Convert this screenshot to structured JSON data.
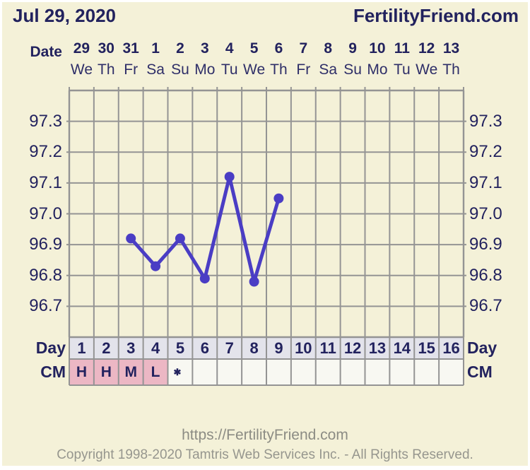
{
  "header": {
    "date_title": "Jul 29, 2020",
    "brand": "FertilityFriend.com"
  },
  "calendar": {
    "label": "Date",
    "dates": [
      "29",
      "30",
      "31",
      "1",
      "2",
      "3",
      "4",
      "5",
      "6",
      "7",
      "8",
      "9",
      "10",
      "11",
      "12",
      "13"
    ],
    "weekdays": [
      "We",
      "Th",
      "Fr",
      "Sa",
      "Su",
      "Mo",
      "Tu",
      "We",
      "Th",
      "Fr",
      "Sa",
      "Su",
      "Mo",
      "Tu",
      "We",
      "Th"
    ]
  },
  "chart_data": {
    "type": "line",
    "title": "",
    "xlabel": "Day",
    "ylabel": "",
    "categories_days": [
      "1",
      "2",
      "3",
      "4",
      "5",
      "6",
      "7",
      "8",
      "9",
      "10",
      "11",
      "12",
      "13",
      "14",
      "15",
      "16"
    ],
    "points": [
      {
        "day": 3,
        "temp": 96.92
      },
      {
        "day": 4,
        "temp": 96.83
      },
      {
        "day": 5,
        "temp": 96.92
      },
      {
        "day": 6,
        "temp": 96.79
      },
      {
        "day": 7,
        "temp": 97.12
      },
      {
        "day": 8,
        "temp": 96.78
      },
      {
        "day": 9,
        "temp": 97.05
      }
    ],
    "ylim": [
      96.6,
      97.4
    ],
    "yticks": [
      "97.3",
      "97.2",
      "97.1",
      "97.0",
      "96.9",
      "96.8",
      "96.7"
    ],
    "ytick_values": [
      97.3,
      97.2,
      97.1,
      97.0,
      96.9,
      96.8,
      96.7
    ],
    "grid": true,
    "legend_position": "none"
  },
  "day_row": {
    "label_left": "Day",
    "label_right": "Day",
    "days": [
      "1",
      "2",
      "3",
      "4",
      "5",
      "6",
      "7",
      "8",
      "9",
      "10",
      "11",
      "12",
      "13",
      "14",
      "15",
      "16"
    ]
  },
  "cm_row": {
    "label_left": "CM",
    "label_right": "CM",
    "cells": [
      {
        "text": "H",
        "style": "pink"
      },
      {
        "text": "H",
        "style": "pink"
      },
      {
        "text": "M",
        "style": "pink"
      },
      {
        "text": "L",
        "style": "pink"
      },
      {
        "text": "✱",
        "style": "star"
      },
      {
        "text": "",
        "style": "empty"
      },
      {
        "text": "",
        "style": "empty"
      },
      {
        "text": "",
        "style": "empty"
      },
      {
        "text": "",
        "style": "empty"
      },
      {
        "text": "",
        "style": "empty"
      },
      {
        "text": "",
        "style": "empty"
      },
      {
        "text": "",
        "style": "empty"
      },
      {
        "text": "",
        "style": "empty"
      },
      {
        "text": "",
        "style": "empty"
      },
      {
        "text": "",
        "style": "empty"
      },
      {
        "text": "",
        "style": "empty"
      }
    ]
  },
  "footer": {
    "url": "https://FertilityFriend.com",
    "copyright": "Copyright 1998-2020 Tamtris Web Services Inc. - All Rights Reserved."
  },
  "colors": {
    "background": "#f4f1d8",
    "navy_text": "#22225e",
    "grid": "#949494",
    "line": "#4a3dc4",
    "day_cell_bg": "#e3e3eb",
    "cm_pink_bg": "#ecb7c4",
    "cm_empty_bg": "#f8f8f2",
    "footer_gray": "#8c8c84"
  }
}
